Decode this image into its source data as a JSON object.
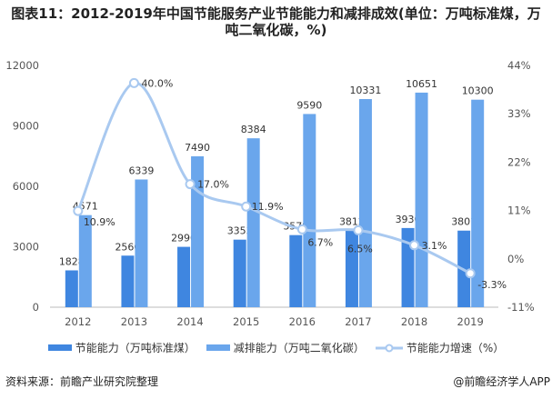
{
  "title": "图表11：2012-2019年中国节能服务产业节能能力和减排成效(单位：万吨标准煤，万吨二氧化碳，%)",
  "chart_data": {
    "type": "bar+line",
    "title": "图表11：2012-2019年中国节能服务产业节能能力和减排成效(单位：万吨标准煤，万吨二氧化碳，%)",
    "categories": [
      "2012",
      "2013",
      "2014",
      "2015",
      "2016",
      "2017",
      "2018",
      "2019"
    ],
    "series": [
      {
        "name": "节能能力（万吨标准煤）",
        "type": "bar",
        "axis": "left",
        "color": "#3f86e0",
        "values": [
          1828,
          2560,
          2996,
          3353,
          3579,
          3812,
          3930,
          3801
        ]
      },
      {
        "name": "减排能力（万吨二氧化碳）",
        "type": "bar",
        "axis": "left",
        "color": "#6aa6ec",
        "values": [
          4571,
          6339,
          7490,
          8384,
          9590,
          10331,
          10651,
          10300
        ]
      },
      {
        "name": "节能能力增速（%）",
        "type": "line",
        "axis": "right",
        "color": "#a9c9f0",
        "values": [
          10.9,
          40.0,
          17.0,
          11.9,
          6.7,
          6.5,
          3.1,
          -3.3
        ],
        "labels": [
          "10.9%",
          "40.0%",
          "17.0%",
          "11.9%",
          "6.7%",
          "6.5%",
          "3.1%",
          "-3.3%"
        ]
      }
    ],
    "y_left": {
      "ylim": [
        0,
        12000
      ],
      "ticks": [
        "0",
        "3000",
        "6000",
        "9000",
        "12000"
      ]
    },
    "y_right": {
      "ylim": [
        -11,
        44
      ],
      "ticks": [
        "-11%",
        "0%",
        "11%",
        "22%",
        "33%",
        "44%"
      ]
    },
    "grid": false,
    "legend": "bottom"
  },
  "legend": [
    "节能能力（万吨标准煤）",
    "减排能力（万吨二氧化碳）",
    "节能能力增速（%）"
  ],
  "footer": {
    "source": "资料来源：前瞻产业研究院整理",
    "brand": "@前瞻经济学人APP"
  }
}
